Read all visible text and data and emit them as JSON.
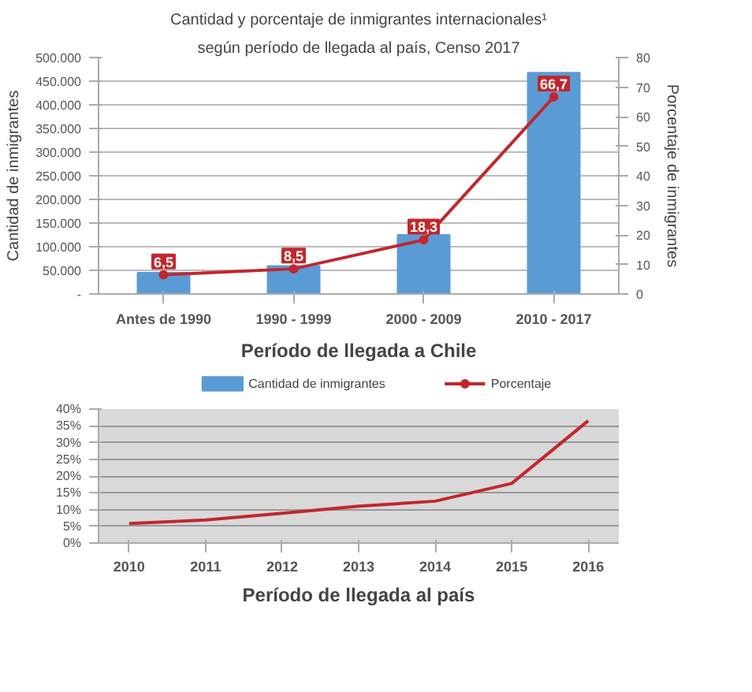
{
  "chart_data": [
    {
      "type": "bar",
      "title": "Cantidad y porcentaje de inmigrantes internacionales¹",
      "subtitle": "según período de llegada al país, Censo 2017",
      "xlabel": "Período de llegada a Chile",
      "ylabel": "Cantidad de inmigrantes",
      "y2label": "Porcentaje de inmigrantes",
      "categories": [
        "Antes de 1990",
        "1990 - 1999",
        "2000 - 2009",
        "2010 - 2017"
      ],
      "series": [
        {
          "name": "Cantidad de inmigrantes",
          "color": "#5b9bd5",
          "values": [
            45000,
            59000,
            125000,
            468000
          ]
        },
        {
          "name": "Porcentaje",
          "type": "line",
          "axis": "y2",
          "color": "#c0282d",
          "marker": "circle",
          "values": [
            6.5,
            8.5,
            18.3,
            66.7
          ],
          "value_labels": [
            "6,5",
            "8,5",
            "18,3",
            "66,7"
          ]
        }
      ],
      "ylim": [
        0,
        500000
      ],
      "yticks": [
        {
          "value": 0,
          "label": "-"
        },
        {
          "value": 50000,
          "label": "50.000"
        },
        {
          "value": 100000,
          "label": "100.000"
        },
        {
          "value": 150000,
          "label": "150.000"
        },
        {
          "value": 200000,
          "label": "200.000"
        },
        {
          "value": 250000,
          "label": "250.000"
        },
        {
          "value": 300000,
          "label": "300.000"
        },
        {
          "value": 350000,
          "label": "350.000"
        },
        {
          "value": 400000,
          "label": "400.000"
        },
        {
          "value": 450000,
          "label": "450.000"
        },
        {
          "value": 500000,
          "label": "500.000"
        }
      ],
      "y2lim": [
        0,
        80
      ],
      "y2ticks": [
        0,
        10,
        20,
        30,
        40,
        50,
        60,
        70,
        80
      ],
      "grid": "y",
      "legend": "bottom"
    },
    {
      "type": "line",
      "xlabel": "Período de llegada al país",
      "x": [
        2010,
        2011,
        2012,
        2013,
        2014,
        2015,
        2016
      ],
      "series": [
        {
          "color": "#c0282d",
          "values": [
            5.8,
            6.9,
            8.9,
            11.0,
            12.5,
            17.8,
            36.5
          ]
        }
      ],
      "xlim": [
        2009.6,
        2016.4
      ],
      "xticks": [
        2010,
        2011,
        2012,
        2013,
        2014,
        2015,
        2016
      ],
      "ylim": [
        0,
        40
      ],
      "yticks": [
        {
          "value": 0,
          "label": "0%"
        },
        {
          "value": 5,
          "label": "5%"
        },
        {
          "value": 10,
          "label": "10%"
        },
        {
          "value": 15,
          "label": "15%"
        },
        {
          "value": 20,
          "label": "20%"
        },
        {
          "value": 25,
          "label": "25%"
        },
        {
          "value": 30,
          "label": "30%"
        },
        {
          "value": 35,
          "label": "35%"
        },
        {
          "value": 40,
          "label": "40%"
        }
      ],
      "grid": "y",
      "marker": "none"
    }
  ]
}
